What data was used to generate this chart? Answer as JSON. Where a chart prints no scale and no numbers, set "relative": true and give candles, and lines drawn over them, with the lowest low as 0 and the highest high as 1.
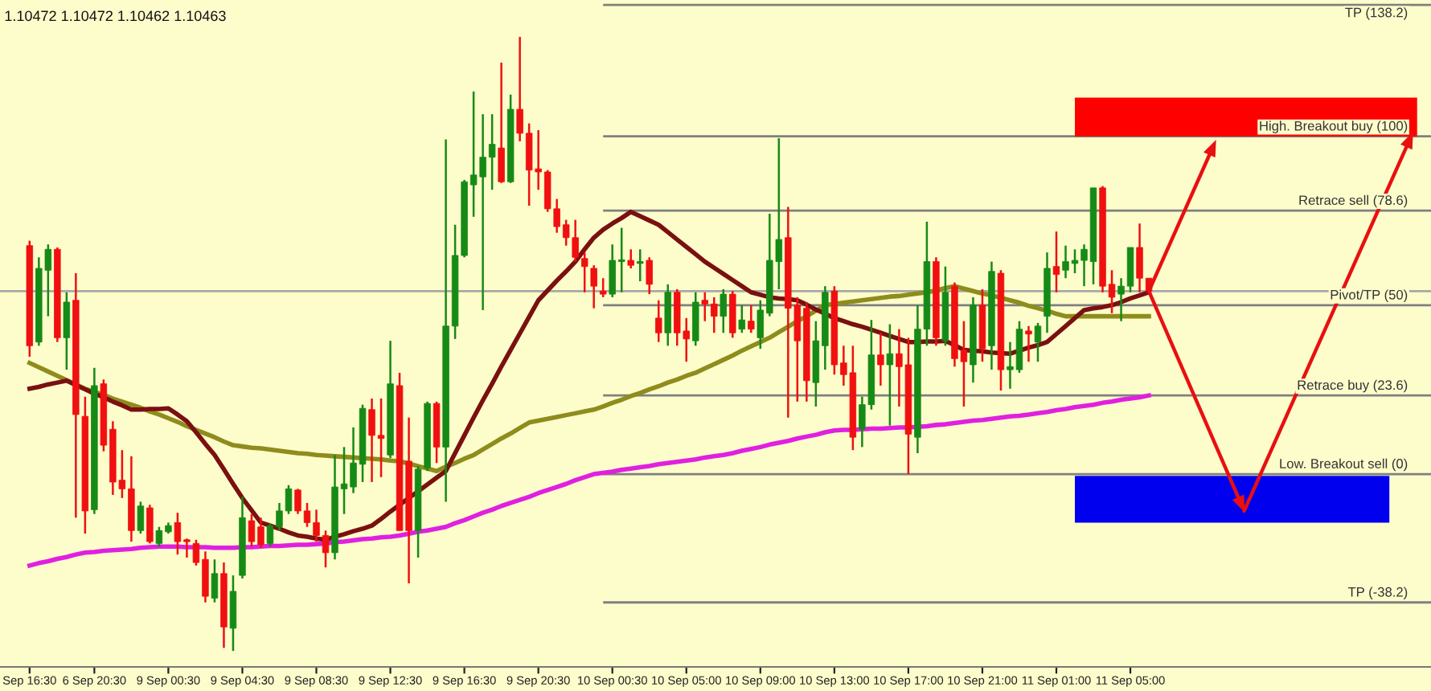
{
  "chart_data": {
    "type": "candlestick",
    "relative": true,
    "tick_labels": "x",
    "grid": false,
    "legend": false,
    "annotations": [
      "1.10472 1.10472 1.10462 1.10463"
    ],
    "categories": [
      "Sep 16:30",
      null,
      null,
      null,
      null,
      null,
      null,
      "6 Sep 20:30",
      null,
      null,
      null,
      null,
      null,
      null,
      null,
      "9 Sep 00:30",
      null,
      null,
      null,
      null,
      null,
      null,
      null,
      "9 Sep 04:30",
      null,
      null,
      null,
      null,
      null,
      null,
      null,
      "9 Sep 08:30",
      null,
      null,
      null,
      null,
      null,
      null,
      null,
      "9 Sep 12:30",
      null,
      null,
      null,
      null,
      null,
      null,
      null,
      "9 Sep 16:30",
      null,
      null,
      null,
      null,
      null,
      null,
      null,
      "9 Sep 20:30",
      null,
      null,
      null,
      null,
      null,
      null,
      null,
      "10 Sep 00:30",
      null,
      null,
      null,
      null,
      null,
      null,
      null,
      "10 Sep 05:00",
      null,
      null,
      null,
      null,
      null,
      null,
      null,
      "10 Sep 09:00",
      null,
      null,
      null,
      null,
      null,
      null,
      null,
      "10 Sep 13:00",
      null,
      null,
      null,
      null,
      null,
      null,
      null,
      "10 Sep 17:00",
      null,
      null,
      null,
      null,
      null,
      null,
      null,
      "10 Sep 21:00",
      null,
      null,
      null,
      null,
      null,
      null,
      null,
      "11 Sep 01:00",
      null,
      null,
      null,
      null,
      null,
      null,
      null,
      "11 Sep 05:00",
      null,
      null
    ],
    "ohlc": [
      [
        0.66,
        0.668,
        0.479,
        0.497
      ],
      [
        0.503,
        0.641,
        0.497,
        0.623
      ],
      [
        0.62,
        0.662,
        0.545,
        0.654
      ],
      [
        0.654,
        0.657,
        0.503,
        0.51
      ],
      [
        0.51,
        0.584,
        0.458,
        0.568
      ],
      [
        0.571,
        0.615,
        0.217,
        0.385
      ],
      [
        0.382,
        0.414,
        0.191,
        0.228
      ],
      [
        0.23,
        0.461,
        0.223,
        0.432
      ],
      [
        0.435,
        0.442,
        0.325,
        0.335
      ],
      [
        0.361,
        0.374,
        0.254,
        0.275
      ],
      [
        0.278,
        0.327,
        0.249,
        0.264
      ],
      [
        0.264,
        0.317,
        0.178,
        0.196
      ],
      [
        0.196,
        0.243,
        0.191,
        0.236
      ],
      [
        0.233,
        0.238,
        0.175,
        0.178
      ],
      [
        0.175,
        0.202,
        0.17,
        0.196
      ],
      [
        0.194,
        0.209,
        0.191,
        0.204
      ],
      [
        0.209,
        0.225,
        0.157,
        0.178
      ],
      [
        0.181,
        0.183,
        0.152,
        0.178
      ],
      [
        0.175,
        0.181,
        0.139,
        0.144
      ],
      [
        0.149,
        0.162,
        0.079,
        0.089
      ],
      [
        0.086,
        0.149,
        0.079,
        0.126
      ],
      [
        0.126,
        0.144,
        0.005,
        0.039
      ],
      [
        0.037,
        0.123,
        0.0,
        0.097
      ],
      [
        0.123,
        0.251,
        0.118,
        0.217
      ],
      [
        0.212,
        0.223,
        0.17,
        0.178
      ],
      [
        0.202,
        0.217,
        0.168,
        0.173
      ],
      [
        0.175,
        0.207,
        0.17,
        0.204
      ],
      [
        0.202,
        0.241,
        0.196,
        0.228
      ],
      [
        0.228,
        0.27,
        0.223,
        0.264
      ],
      [
        0.262,
        0.264,
        0.223,
        0.228
      ],
      [
        0.228,
        0.241,
        0.202,
        0.209
      ],
      [
        0.209,
        0.23,
        0.178,
        0.188
      ],
      [
        0.188,
        0.196,
        0.136,
        0.16
      ],
      [
        0.16,
        0.319,
        0.149,
        0.267
      ],
      [
        0.264,
        0.332,
        0.223,
        0.272
      ],
      [
        0.267,
        0.364,
        0.257,
        0.306
      ],
      [
        0.304,
        0.401,
        0.275,
        0.395
      ],
      [
        0.393,
        0.411,
        0.275,
        0.351
      ],
      [
        0.351,
        0.411,
        0.283,
        0.346
      ],
      [
        0.319,
        0.505,
        0.314,
        0.435
      ],
      [
        0.432,
        0.453,
        0.196,
        0.196
      ],
      [
        0.309,
        0.38,
        0.11,
        0.196
      ],
      [
        0.196,
        0.301,
        0.152,
        0.296
      ],
      [
        0.298,
        0.406,
        0.293,
        0.403
      ],
      [
        0.403,
        0.406,
        0.306,
        0.332
      ],
      [
        0.332,
        0.833,
        0.243,
        0.529
      ],
      [
        0.529,
        0.694,
        0.508,
        0.644
      ],
      [
        0.644,
        0.767,
        0.641,
        0.764
      ],
      [
        0.759,
        0.911,
        0.707,
        0.775
      ],
      [
        0.772,
        0.874,
        0.555,
        0.804
      ],
      [
        0.804,
        0.874,
        0.751,
        0.825
      ],
      [
        0.819,
        0.958,
        0.762,
        0.764
      ],
      [
        0.764,
        0.906,
        0.762,
        0.882
      ],
      [
        0.882,
        1.0,
        0.83,
        0.843
      ],
      [
        0.843,
        0.859,
        0.725,
        0.783
      ],
      [
        0.785,
        0.848,
        0.751,
        0.78
      ],
      [
        0.78,
        0.783,
        0.715,
        0.72
      ],
      [
        0.72,
        0.736,
        0.681,
        0.691
      ],
      [
        0.694,
        0.702,
        0.66,
        0.673
      ],
      [
        0.673,
        0.702,
        0.634,
        0.641
      ],
      [
        0.639,
        0.649,
        0.584,
        0.626
      ],
      [
        0.623,
        0.628,
        0.558,
        0.594
      ],
      [
        0.586,
        0.607,
        0.576,
        0.581
      ],
      [
        0.581,
        0.662,
        0.576,
        0.636
      ],
      [
        0.634,
        0.689,
        0.584,
        0.636
      ],
      [
        0.636,
        0.654,
        0.623,
        0.628
      ],
      [
        0.631,
        0.654,
        0.602,
        0.634
      ],
      [
        0.636,
        0.641,
        0.581,
        0.597
      ],
      [
        0.542,
        0.571,
        0.503,
        0.518
      ],
      [
        0.518,
        0.597,
        0.497,
        0.584
      ],
      [
        0.584,
        0.589,
        0.497,
        0.518
      ],
      [
        0.521,
        0.542,
        0.471,
        0.508
      ],
      [
        0.505,
        0.584,
        0.497,
        0.568
      ],
      [
        0.571,
        0.584,
        0.537,
        0.565
      ],
      [
        0.565,
        0.576,
        0.518,
        0.545
      ],
      [
        0.545,
        0.589,
        0.518,
        0.581
      ],
      [
        0.581,
        0.586,
        0.51,
        0.518
      ],
      [
        0.524,
        0.563,
        0.518,
        0.539
      ],
      [
        0.537,
        0.563,
        0.518,
        0.524
      ],
      [
        0.51,
        0.571,
        0.492,
        0.555
      ],
      [
        0.55,
        0.712,
        0.545,
        0.636
      ],
      [
        0.634,
        0.835,
        0.589,
        0.67
      ],
      [
        0.673,
        0.723,
        0.38,
        0.558
      ],
      [
        0.563,
        0.576,
        0.406,
        0.505
      ],
      [
        0.558,
        0.568,
        0.406,
        0.44
      ],
      [
        0.437,
        0.537,
        0.398,
        0.505
      ],
      [
        0.497,
        0.594,
        0.458,
        0.584
      ],
      [
        0.586,
        0.594,
        0.45,
        0.466
      ],
      [
        0.469,
        0.497,
        0.432,
        0.45
      ],
      [
        0.453,
        0.497,
        0.327,
        0.348
      ],
      [
        0.361,
        0.414,
        0.332,
        0.401
      ],
      [
        0.401,
        0.539,
        0.393,
        0.482
      ],
      [
        0.482,
        0.518,
        0.432,
        0.466
      ],
      [
        0.466,
        0.532,
        0.367,
        0.484
      ],
      [
        0.484,
        0.524,
        0.398,
        0.463
      ],
      [
        0.466,
        0.51,
        0.288,
        0.353
      ],
      [
        0.348,
        0.563,
        0.322,
        0.524
      ],
      [
        0.524,
        0.699,
        0.497,
        0.634
      ],
      [
        0.634,
        0.641,
        0.497,
        0.51
      ],
      [
        0.505,
        0.626,
        0.497,
        0.584
      ],
      [
        0.594,
        0.6,
        0.463,
        0.476
      ],
      [
        0.49,
        0.537,
        0.398,
        0.471
      ],
      [
        0.466,
        0.576,
        0.437,
        0.563
      ],
      [
        0.563,
        0.589,
        0.471,
        0.492
      ],
      [
        0.497,
        0.634,
        0.458,
        0.618
      ],
      [
        0.615,
        0.62,
        0.424,
        0.458
      ],
      [
        0.458,
        0.503,
        0.427,
        0.463
      ],
      [
        0.458,
        0.537,
        0.453,
        0.524
      ],
      [
        0.521,
        0.529,
        0.471,
        0.516
      ],
      [
        0.503,
        0.534,
        0.471,
        0.529
      ],
      [
        0.545,
        0.649,
        0.518,
        0.623
      ],
      [
        0.626,
        0.683,
        0.584,
        0.613
      ],
      [
        0.62,
        0.66,
        0.607,
        0.634
      ],
      [
        0.631,
        0.654,
        0.615,
        0.636
      ],
      [
        0.636,
        0.662,
        0.594,
        0.654
      ],
      [
        0.634,
        0.754,
        0.597,
        0.754
      ],
      [
        0.754,
        0.757,
        0.584,
        0.594
      ],
      [
        0.597,
        0.62,
        0.55,
        0.576
      ],
      [
        0.581,
        0.607,
        0.537,
        0.594
      ],
      [
        0.594,
        0.657,
        0.584,
        0.657
      ],
      [
        0.657,
        0.696,
        0.584,
        0.607
      ],
      [
        0.607,
        0.607,
        0.584,
        0.586
      ]
    ],
    "series": [
      {
        "type": "line",
        "color": "#e020e0",
        "values": [
          0.139,
          0.143,
          0.146,
          0.15,
          0.153,
          0.157,
          0.16,
          0.161,
          0.163,
          0.164,
          0.165,
          0.166,
          0.168,
          0.169,
          0.17,
          0.17,
          0.17,
          0.169,
          0.169,
          0.169,
          0.168,
          0.168,
          0.168,
          0.169,
          0.169,
          0.17,
          0.171,
          0.171,
          0.172,
          0.173,
          0.173,
          0.174,
          0.175,
          0.177,
          0.178,
          0.18,
          0.182,
          0.183,
          0.185,
          0.186,
          0.188,
          0.191,
          0.194,
          0.196,
          0.199,
          0.202,
          0.208,
          0.213,
          0.219,
          0.225,
          0.23,
          0.236,
          0.241,
          0.246,
          0.251,
          0.257,
          0.262,
          0.267,
          0.272,
          0.278,
          0.283,
          0.288,
          0.29,
          0.292,
          0.295,
          0.297,
          0.299,
          0.301,
          0.304,
          0.306,
          0.308,
          0.31,
          0.312,
          0.315,
          0.317,
          0.319,
          0.322,
          0.326,
          0.329,
          0.332,
          0.336,
          0.339,
          0.342,
          0.346,
          0.349,
          0.352,
          0.356,
          0.359,
          0.36,
          0.36,
          0.361,
          0.362,
          0.362,
          0.363,
          0.364,
          0.364,
          0.365,
          0.366,
          0.368,
          0.369,
          0.371,
          0.373,
          0.375,
          0.376,
          0.378,
          0.38,
          0.382,
          0.383,
          0.385,
          0.387,
          0.389,
          0.392,
          0.394,
          0.397,
          0.399,
          0.401,
          0.404,
          0.406,
          0.409,
          0.411,
          0.413,
          0.416
        ]
      },
      {
        "type": "line",
        "color": "#8e8c1c",
        "values": [
          0.469,
          0.462,
          0.455,
          0.448,
          0.441,
          0.434,
          0.427,
          0.422,
          0.417,
          0.411,
          0.406,
          0.401,
          0.396,
          0.39,
          0.385,
          0.379,
          0.373,
          0.366,
          0.36,
          0.354,
          0.348,
          0.341,
          0.335,
          0.333,
          0.331,
          0.33,
          0.328,
          0.326,
          0.324,
          0.322,
          0.321,
          0.319,
          0.318,
          0.317,
          0.316,
          0.315,
          0.314,
          0.313,
          0.312,
          0.31,
          0.309,
          0.305,
          0.301,
          0.297,
          0.293,
          0.3,
          0.306,
          0.313,
          0.319,
          0.328,
          0.337,
          0.346,
          0.354,
          0.363,
          0.372,
          0.375,
          0.378,
          0.381,
          0.384,
          0.387,
          0.39,
          0.393,
          0.398,
          0.404,
          0.409,
          0.415,
          0.42,
          0.426,
          0.431,
          0.437,
          0.442,
          0.448,
          0.453,
          0.46,
          0.467,
          0.474,
          0.481,
          0.489,
          0.496,
          0.503,
          0.51,
          0.519,
          0.528,
          0.537,
          0.545,
          0.554,
          0.563,
          0.565,
          0.567,
          0.569,
          0.571,
          0.573,
          0.575,
          0.577,
          0.578,
          0.58,
          0.582,
          0.584,
          0.587,
          0.591,
          0.594,
          0.59,
          0.586,
          0.582,
          0.579,
          0.575,
          0.571,
          0.567,
          0.562,
          0.558,
          0.554,
          0.549,
          0.545,
          0.545,
          0.545,
          0.545,
          0.545,
          0.545,
          0.545,
          0.545,
          0.545,
          0.545
        ]
      },
      {
        "type": "line",
        "color": "#7a1010",
        "values": [
          0.427,
          0.43,
          0.434,
          0.437,
          0.44,
          0.433,
          0.426,
          0.419,
          0.413,
          0.406,
          0.4,
          0.393,
          0.393,
          0.394,
          0.394,
          0.395,
          0.385,
          0.374,
          0.356,
          0.337,
          0.319,
          0.296,
          0.272,
          0.249,
          0.229,
          0.209,
          0.204,
          0.199,
          0.193,
          0.188,
          0.186,
          0.183,
          0.181,
          0.186,
          0.19,
          0.195,
          0.199,
          0.204,
          0.215,
          0.227,
          0.238,
          0.249,
          0.26,
          0.271,
          0.282,
          0.293,
          0.322,
          0.351,
          0.38,
          0.408,
          0.435,
          0.463,
          0.49,
          0.517,
          0.544,
          0.571,
          0.587,
          0.603,
          0.618,
          0.634,
          0.654,
          0.673,
          0.686,
          0.696,
          0.705,
          0.715,
          0.708,
          0.701,
          0.694,
          0.682,
          0.67,
          0.658,
          0.646,
          0.634,
          0.624,
          0.614,
          0.604,
          0.594,
          0.584,
          0.58,
          0.576,
          0.574,
          0.573,
          0.571,
          0.564,
          0.556,
          0.549,
          0.542,
          0.537,
          0.532,
          0.528,
          0.523,
          0.518,
          0.513,
          0.508,
          0.503,
          0.503,
          0.504,
          0.504,
          0.505,
          0.498,
          0.49,
          0.489,
          0.488,
          0.486,
          0.485,
          0.484,
          0.489,
          0.494,
          0.498,
          0.503,
          0.516,
          0.529,
          0.542,
          0.555,
          0.558,
          0.56,
          0.563,
          0.568,
          0.574,
          0.579,
          0.584
        ]
      }
    ],
    "bands": [
      {
        "axis": "y",
        "from": 0.838,
        "to": 0.901,
        "label": null,
        "color": "#ff0000"
      },
      {
        "axis": "y",
        "from": 0.209,
        "to": 0.285,
        "label": null,
        "color": "#0000ee"
      }
    ],
    "ref_lines": [
      {
        "axis": "y",
        "value": 0.586,
        "label": null,
        "color": "#a8a8a8"
      },
      {
        "axis": "y",
        "value": 1.052,
        "label": "TP (138.2)",
        "color": "#808080"
      },
      {
        "axis": "y",
        "value": 0.838,
        "label": "High. Breakout buy (100)",
        "color": "#808080"
      },
      {
        "axis": "y",
        "value": 0.717,
        "label": "Retrace sell (78.6)",
        "color": "#808080"
      },
      {
        "axis": "y",
        "value": 0.563,
        "label": "Pivot/TP (50)",
        "color": "#808080"
      },
      {
        "axis": "y",
        "value": 0.416,
        "label": "Retrace buy (23.6)",
        "color": "#808080"
      },
      {
        "axis": "y",
        "value": 0.288,
        "label": "Low. Breakout sell (0)",
        "color": "#808080"
      },
      {
        "axis": "y",
        "value": 0.079,
        "label": "TP (-38.2)",
        "color": "#808080"
      }
    ]
  }
}
